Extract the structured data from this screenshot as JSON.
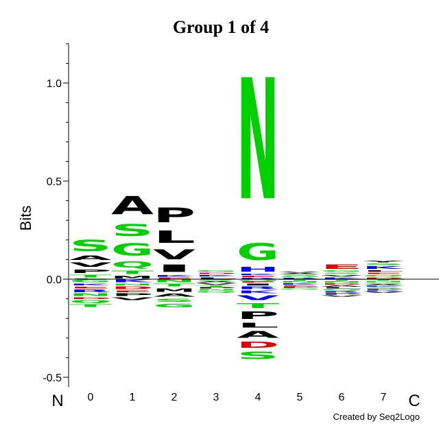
{
  "chart_data": {
    "type": "sequence-logo",
    "title": "Group 1 of 4",
    "ylabel": "Bits",
    "ylim": [
      -0.55,
      1.2
    ],
    "yticks": [
      "-0.5",
      "0.0",
      "0.5",
      "1.0"
    ],
    "ytick_values": [
      -0.5,
      0.0,
      0.5,
      1.0
    ],
    "minor_tick_step": 0.1,
    "positions": [
      "0",
      "1",
      "2",
      "3",
      "4",
      "5",
      "6",
      "7"
    ],
    "n_label": "N",
    "c_label": "C",
    "colors": {
      "green": "#00d000",
      "black": "#000000",
      "blue": "#0000ff",
      "red": "#e00000",
      "purple": "#9900aa"
    },
    "stacks": [
      {
        "pos": "0",
        "up": [
          [
            "L",
            0.005,
            "black"
          ],
          [
            "T",
            0.02,
            "green"
          ],
          [
            "P",
            0.03,
            "black"
          ],
          [
            "V",
            0.035,
            "black"
          ],
          [
            "A",
            0.035,
            "black"
          ],
          [
            "S",
            0.09,
            "green"
          ]
        ],
        "down": [
          [
            "G",
            0.02,
            "green"
          ],
          [
            "K",
            0.015,
            "blue"
          ],
          [
            "E",
            0.015,
            "red"
          ],
          [
            "R",
            0.02,
            "blue"
          ],
          [
            "N",
            0.02,
            "green"
          ],
          [
            "D",
            0.015,
            "red"
          ],
          [
            "Q",
            0.02,
            "green"
          ],
          [
            "T",
            0.02,
            "green"
          ]
        ]
      },
      {
        "pos": "1",
        "up": [
          [
            "M",
            0.02,
            "black"
          ],
          [
            "T",
            0.03,
            "green"
          ],
          [
            "Q",
            0.05,
            "green"
          ],
          [
            "G",
            0.1,
            "green"
          ],
          [
            "S",
            0.1,
            "green"
          ],
          [
            "A",
            0.15,
            "black"
          ]
        ],
        "down": [
          [
            "K",
            0.02,
            "blue"
          ],
          [
            "N",
            0.015,
            "green"
          ],
          [
            "D",
            0.02,
            "red"
          ],
          [
            "E",
            0.015,
            "red"
          ],
          [
            "P",
            0.02,
            "black"
          ],
          [
            "V",
            0.02,
            "black"
          ]
        ]
      },
      {
        "pos": "2",
        "up": [
          [
            "E",
            0.01,
            "red"
          ],
          [
            "K",
            0.015,
            "blue"
          ],
          [
            "I",
            0.06,
            "black"
          ],
          [
            "V",
            0.08,
            "black"
          ],
          [
            "L",
            0.1,
            "black"
          ],
          [
            "P",
            0.12,
            "black"
          ]
        ],
        "down": [
          [
            "N",
            0.02,
            "green"
          ],
          [
            "T",
            0.02,
            "green"
          ],
          [
            "M",
            0.03,
            "black"
          ],
          [
            "A",
            0.025,
            "black"
          ],
          [
            "S",
            0.025,
            "green"
          ],
          [
            "G",
            0.03,
            "green"
          ]
        ]
      },
      {
        "pos": "3",
        "up": [
          [
            "L",
            0.012,
            "black"
          ],
          [
            "K",
            0.012,
            "blue"
          ],
          [
            "D",
            0.012,
            "red"
          ],
          [
            "G",
            0.01,
            "green"
          ]
        ],
        "down": [
          [
            "S",
            0.01,
            "green"
          ],
          [
            "A",
            0.01,
            "black"
          ],
          [
            "V",
            0.01,
            "black"
          ],
          [
            "T",
            0.01,
            "green"
          ],
          [
            "P",
            0.01,
            "black"
          ],
          [
            "N",
            0.01,
            "green"
          ],
          [
            "Q",
            0.01,
            "green"
          ]
        ]
      },
      {
        "pos": "4",
        "up": [
          [
            "R",
            0.008,
            "blue"
          ],
          [
            "E",
            0.01,
            "red"
          ],
          [
            "K",
            0.012,
            "blue"
          ],
          [
            "H",
            0.04,
            "blue"
          ],
          [
            "G",
            0.14,
            "green"
          ],
          [
            "N",
            0.99,
            "green"
          ]
        ],
        "down": [
          [
            "Q",
            0.01,
            "green"
          ],
          [
            "E",
            0.01,
            "red"
          ],
          [
            "I",
            0.015,
            "black"
          ],
          [
            "R",
            0.02,
            "blue"
          ],
          [
            "K",
            0.02,
            "blue"
          ],
          [
            "V",
            0.04,
            "blue"
          ],
          [
            "T",
            0.04,
            "green"
          ],
          [
            "P",
            0.06,
            "black"
          ],
          [
            "L",
            0.04,
            "black"
          ],
          [
            "A",
            0.055,
            "black"
          ],
          [
            "D",
            0.05,
            "red"
          ],
          [
            "S",
            0.06,
            "green"
          ]
        ]
      },
      {
        "pos": "5",
        "up": [
          [
            "R",
            0.008,
            "blue"
          ],
          [
            "Q",
            0.008,
            "green"
          ],
          [
            "S",
            0.008,
            "green"
          ],
          [
            "A",
            0.008,
            "black"
          ],
          [
            "V",
            0.006,
            "black"
          ]
        ],
        "down": [
          [
            "T",
            0.01,
            "green"
          ],
          [
            "N",
            0.01,
            "green"
          ],
          [
            "K",
            0.01,
            "blue"
          ],
          [
            "E",
            0.008,
            "red"
          ],
          [
            "P",
            0.008,
            "black"
          ],
          [
            "G",
            0.008,
            "green"
          ]
        ]
      },
      {
        "pos": "6",
        "up": [
          [
            "K",
            0.012,
            "blue"
          ],
          [
            "V",
            0.012,
            "black"
          ],
          [
            "S",
            0.012,
            "green"
          ],
          [
            "G",
            0.01,
            "green"
          ],
          [
            "E",
            0.035,
            "red"
          ]
        ],
        "down": [
          [
            "T",
            0.01,
            "green"
          ],
          [
            "N",
            0.01,
            "green"
          ],
          [
            "D",
            0.01,
            "red"
          ],
          [
            "A",
            0.01,
            "black"
          ],
          [
            "L",
            0.01,
            "black"
          ],
          [
            "Q",
            0.01,
            "green"
          ],
          [
            "R",
            0.01,
            "blue"
          ],
          [
            "P",
            0.01,
            "black"
          ],
          [
            "V",
            0.012,
            "black"
          ]
        ]
      },
      {
        "pos": "7",
        "up": [
          [
            "D",
            0.012,
            "red"
          ],
          [
            "Q",
            0.012,
            "green"
          ],
          [
            "E",
            0.012,
            "red"
          ],
          [
            "L",
            0.012,
            "black"
          ],
          [
            "K",
            0.02,
            "blue"
          ],
          [
            "S",
            0.015,
            "green"
          ],
          [
            "Y",
            0.015,
            "black"
          ]
        ],
        "down": [
          [
            "T",
            0.008,
            "green"
          ],
          [
            "N",
            0.008,
            "green"
          ],
          [
            "G",
            0.008,
            "green"
          ],
          [
            "A",
            0.008,
            "black"
          ],
          [
            "K",
            0.008,
            "blue"
          ],
          [
            "S",
            0.008,
            "green"
          ],
          [
            "P",
            0.008,
            "black"
          ],
          [
            "R",
            0.008,
            "blue"
          ],
          [
            "V",
            0.008,
            "black"
          ]
        ]
      }
    ]
  },
  "credit": "Created by Seq2Logo"
}
